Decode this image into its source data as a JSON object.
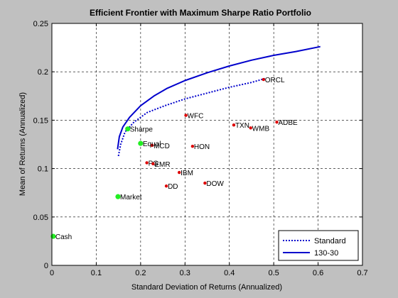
{
  "chart_data": {
    "type": "scatter",
    "title": "Efficient Frontier with Maximum Sharpe Ratio Portfolio",
    "xlabel": "Standard Deviation of Returns (Annualized)",
    "ylabel": "Mean of Returns (Annualized)",
    "xlim": [
      0,
      0.7
    ],
    "ylim": [
      0,
      0.25
    ],
    "xticks": [
      0,
      0.1,
      0.2,
      0.3,
      0.4,
      0.5,
      0.6,
      0.7
    ],
    "yticks": [
      0,
      0.05,
      0.1,
      0.15,
      0.2,
      0.25
    ],
    "xtick_labels": [
      "0",
      "0.1",
      "0.2",
      "0.3",
      "0.4",
      "0.5",
      "0.6",
      "0.7"
    ],
    "ytick_labels": [
      "0",
      "0.05",
      "0.1",
      "0.15",
      "0.2",
      "0.25"
    ],
    "grid": true,
    "legend_position": "bottom-right",
    "colors": {
      "background": "#c0c0c0",
      "axes": "#ffffff",
      "frontier": "#0000cc",
      "asset": "#dd0000",
      "benchmark": "#22ee22"
    },
    "series": [
      {
        "name": "Standard",
        "style": "dotted",
        "x": [
          0.15,
          0.155,
          0.165,
          0.185,
          0.215,
          0.255,
          0.3,
          0.35,
          0.4,
          0.45,
          0.48
        ],
        "y": [
          0.113,
          0.125,
          0.138,
          0.148,
          0.158,
          0.165,
          0.172,
          0.178,
          0.184,
          0.189,
          0.193
        ]
      },
      {
        "name": "130-30",
        "style": "solid",
        "x": [
          0.148,
          0.152,
          0.16,
          0.175,
          0.2,
          0.23,
          0.26,
          0.3,
          0.35,
          0.4,
          0.45,
          0.5,
          0.55,
          0.605
        ],
        "y": [
          0.12,
          0.133,
          0.143,
          0.153,
          0.165,
          0.175,
          0.183,
          0.191,
          0.199,
          0.206,
          0.212,
          0.217,
          0.221,
          0.226
        ]
      }
    ],
    "assets": [
      {
        "label": "ORCL",
        "x": 0.477,
        "y": 0.192
      },
      {
        "label": "WFC",
        "x": 0.302,
        "y": 0.155
      },
      {
        "label": "TXN",
        "x": 0.41,
        "y": 0.145
      },
      {
        "label": "WMB",
        "x": 0.448,
        "y": 0.142
      },
      {
        "label": "ADBE",
        "x": 0.507,
        "y": 0.148
      },
      {
        "label": "MCD",
        "x": 0.226,
        "y": 0.124
      },
      {
        "label": "HON",
        "x": 0.317,
        "y": 0.123
      },
      {
        "label": "PG",
        "x": 0.214,
        "y": 0.106
      },
      {
        "label": "EMR",
        "x": 0.228,
        "y": 0.105
      },
      {
        "label": "IBM",
        "x": 0.287,
        "y": 0.096
      },
      {
        "label": "DD",
        "x": 0.258,
        "y": 0.082
      },
      {
        "label": "DOW",
        "x": 0.345,
        "y": 0.085
      }
    ],
    "benchmarks": [
      {
        "label": "Sharpe",
        "x": 0.171,
        "y": 0.141
      },
      {
        "label": "Equal",
        "x": 0.2,
        "y": 0.126
      },
      {
        "label": "Market",
        "x": 0.149,
        "y": 0.071
      },
      {
        "label": "Cash",
        "x": 0.003,
        "y": 0.03
      }
    ]
  }
}
